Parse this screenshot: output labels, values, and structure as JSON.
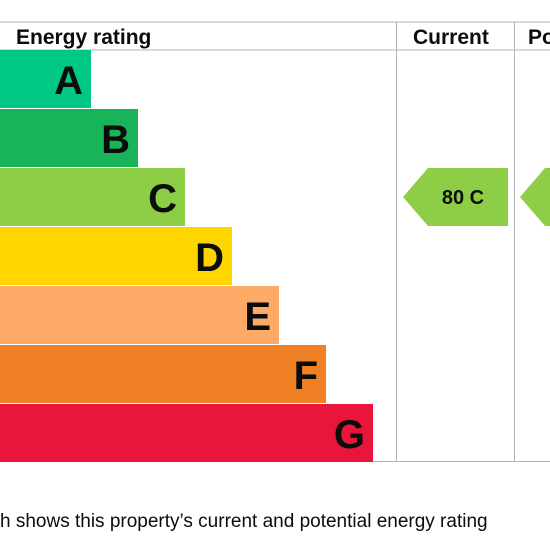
{
  "header": {
    "title": "Energy rating",
    "current": "Current",
    "potential": "Po"
  },
  "bands": [
    "A",
    "B",
    "C",
    "D",
    "E",
    "F",
    "G"
  ],
  "current": {
    "score": 80,
    "band": "C"
  },
  "caption": "h shows this property’s current and potential energy rating"
}
